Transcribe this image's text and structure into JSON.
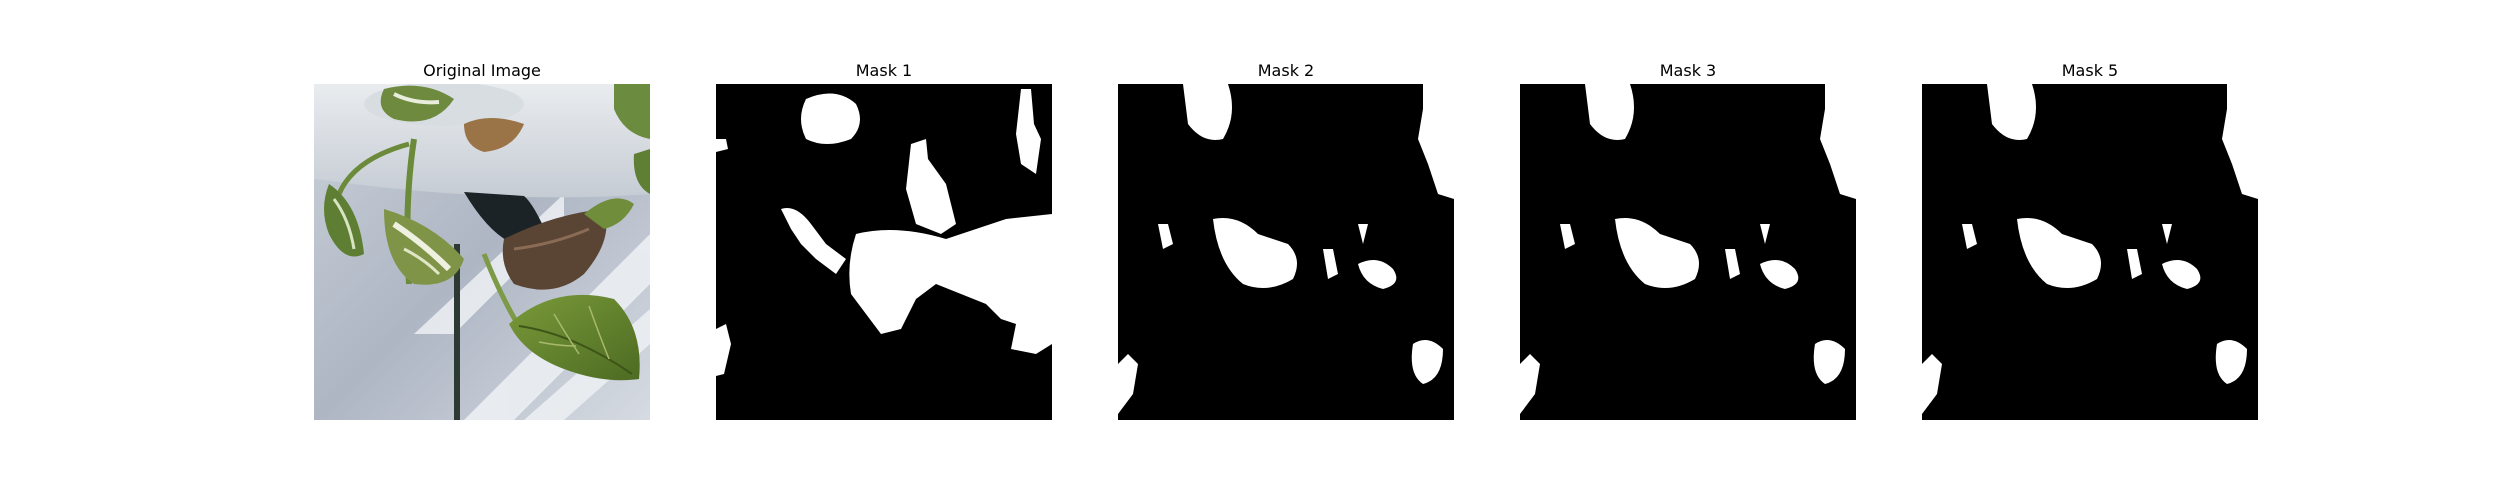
{
  "panels": [
    {
      "title": "Original Image",
      "kind": "photo",
      "image_description": "Close-up of a variegated pothos plant stem with green and white leaves and a dried brown leaf, against a white pot and pale background."
    },
    {
      "title": "Mask 1",
      "kind": "mask"
    },
    {
      "title": "Mask 2",
      "kind": "mask"
    },
    {
      "title": "Mask 3",
      "kind": "mask"
    },
    {
      "title": "Mask 5",
      "kind": "mask"
    }
  ],
  "colors": {
    "mask_background": "#000000",
    "mask_foreground": "#ffffff",
    "page_background": "#ffffff"
  }
}
